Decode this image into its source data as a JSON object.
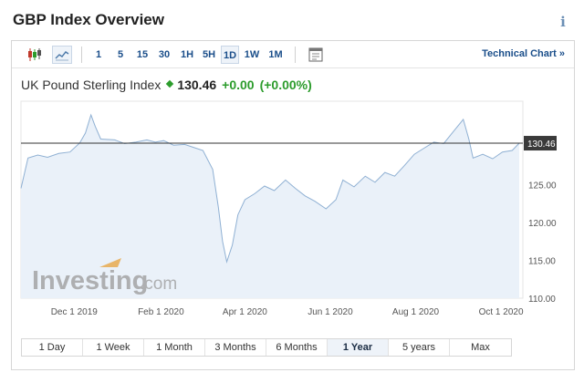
{
  "header": {
    "title": "GBP Index Overview",
    "info_icon": "info-icon"
  },
  "toolbar": {
    "chart_type_icons": [
      "candlestick-icon",
      "line-chart-icon"
    ],
    "intervals": [
      "1",
      "5",
      "15",
      "30",
      "1H",
      "5H",
      "1D",
      "1W",
      "1M"
    ],
    "active_interval": "1D",
    "settings_icon": "chart-settings-icon",
    "technical_link": "Technical Chart »"
  },
  "quote": {
    "name": "UK Pound Sterling Index",
    "price": "130.46",
    "change": "+0.00",
    "change_pct": "(+0.00%)",
    "up_color": "#2c9c2c"
  },
  "watermark": {
    "brand": "Investing",
    "suffix": ".com"
  },
  "chart_data": {
    "type": "area",
    "x_ticks": [
      "Dec 1 2019",
      "Feb 1 2020",
      "Apr 1 2020",
      "Jun 1 2020",
      "Aug 1 2020",
      "Oct 1 2020"
    ],
    "y_ticks": [
      "110.00",
      "115.00",
      "120.00",
      "125.00"
    ],
    "ylim": [
      110,
      136
    ],
    "x": [
      "2019-10-24",
      "2019-10-29",
      "2019-11-05",
      "2019-11-12",
      "2019-11-20",
      "2019-11-28",
      "2019-12-05",
      "2019-12-09",
      "2019-12-13",
      "2019-12-16",
      "2019-12-20",
      "2019-12-30",
      "2020-01-06",
      "2020-01-14",
      "2020-01-22",
      "2020-01-28",
      "2020-02-03",
      "2020-02-10",
      "2020-02-18",
      "2020-02-26",
      "2020-03-02",
      "2020-03-09",
      "2020-03-13",
      "2020-03-16",
      "2020-03-19",
      "2020-03-23",
      "2020-03-27",
      "2020-04-01",
      "2020-04-08",
      "2020-04-15",
      "2020-04-22",
      "2020-04-30",
      "2020-05-07",
      "2020-05-14",
      "2020-05-21",
      "2020-05-29",
      "2020-06-05",
      "2020-06-10",
      "2020-06-18",
      "2020-06-26",
      "2020-07-03",
      "2020-07-10",
      "2020-07-17",
      "2020-07-24",
      "2020-07-31",
      "2020-08-07",
      "2020-08-14",
      "2020-08-21",
      "2020-08-28",
      "2020-09-04",
      "2020-09-08",
      "2020-09-11",
      "2020-09-18",
      "2020-09-25",
      "2020-10-02",
      "2020-10-09",
      "2020-10-14"
    ],
    "values": [
      124.5,
      128.5,
      128.9,
      128.6,
      129.1,
      129.3,
      130.5,
      131.8,
      134.2,
      132.7,
      131.0,
      130.9,
      130.4,
      130.6,
      130.9,
      130.6,
      130.8,
      130.2,
      130.3,
      129.8,
      129.5,
      127.0,
      122.0,
      117.5,
      114.8,
      117.0,
      121.0,
      123.0,
      123.8,
      124.8,
      124.2,
      125.6,
      124.5,
      123.5,
      122.8,
      121.8,
      123.0,
      125.6,
      124.7,
      126.1,
      125.3,
      126.6,
      126.1,
      127.5,
      129.0,
      129.8,
      130.6,
      130.4,
      132.0,
      133.6,
      131.0,
      128.5,
      129.0,
      128.4,
      129.3,
      129.5,
      130.46
    ],
    "last_price": 130.46,
    "last_price_label": "130.46",
    "series_color": "#8fb0d3",
    "fill_color": "#eaf1f9"
  },
  "ranges": {
    "items": [
      "1 Day",
      "1 Week",
      "1 Month",
      "3 Months",
      "6 Months",
      "1 Year",
      "5 years",
      "Max"
    ],
    "active": "1 Year"
  }
}
